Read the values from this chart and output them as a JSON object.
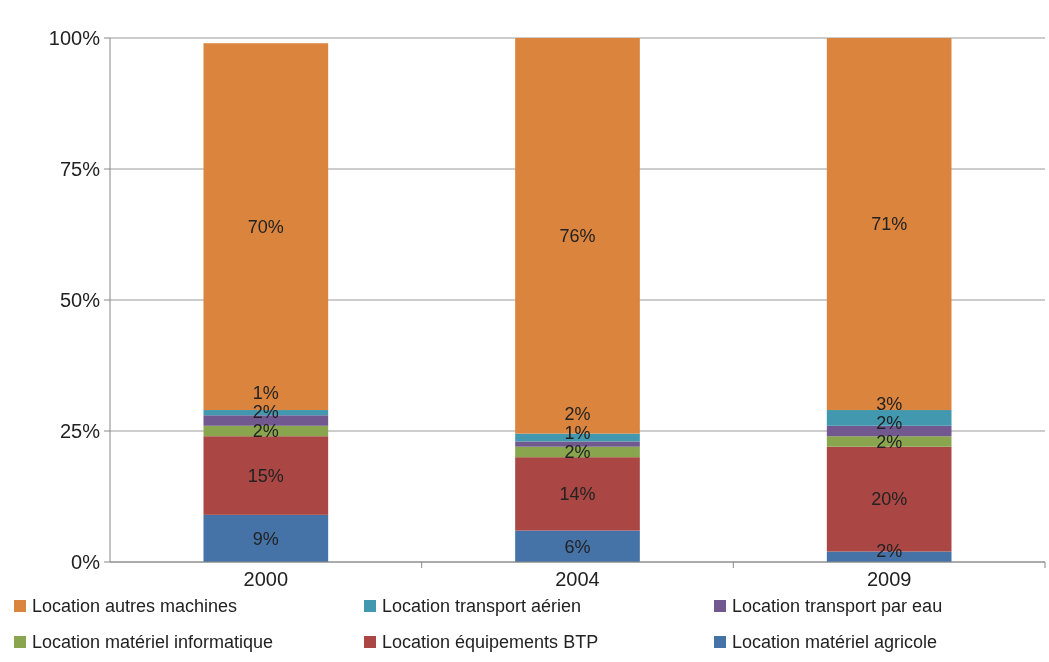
{
  "chart_data": {
    "type": "bar",
    "stacked": true,
    "categories": [
      "2000",
      "2004",
      "2009"
    ],
    "series": [
      {
        "name": "Location matériel agricole",
        "color": "#4572a7",
        "values": [
          9,
          6,
          2
        ],
        "value_labels": [
          "9%",
          "6%",
          "2%"
        ]
      },
      {
        "name": "Location équipements BTP",
        "color": "#aa4643",
        "values": [
          15,
          14,
          20
        ],
        "value_labels": [
          "15%",
          "14%",
          "20%"
        ]
      },
      {
        "name": "Location matériel informatique",
        "color": "#89a54e",
        "values": [
          2,
          2,
          2
        ],
        "value_labels": [
          "2%",
          "2%",
          "2%"
        ]
      },
      {
        "name": "Location transport par eau",
        "color": "#71588f",
        "values": [
          2,
          1,
          2
        ],
        "value_labels": [
          "2%",
          "1%",
          "2%"
        ]
      },
      {
        "name": "Location transport aérien",
        "color": "#4198af",
        "values": [
          1,
          1.5,
          3
        ],
        "value_labels": [
          "1%",
          "2%",
          "3%"
        ]
      },
      {
        "name": "Location autres machines",
        "color": "#db843d",
        "values": [
          70,
          75.5,
          71
        ],
        "value_labels": [
          "70%",
          "76%",
          "71%"
        ]
      }
    ],
    "ylim": [
      0,
      100
    ],
    "yticks": [
      {
        "value": 0,
        "label": "0%"
      },
      {
        "value": 25,
        "label": "25%"
      },
      {
        "value": 50,
        "label": "50%"
      },
      {
        "value": 75,
        "label": "75%"
      },
      {
        "value": 100,
        "label": "100%"
      }
    ],
    "grid": "y",
    "legend": "bottom"
  }
}
